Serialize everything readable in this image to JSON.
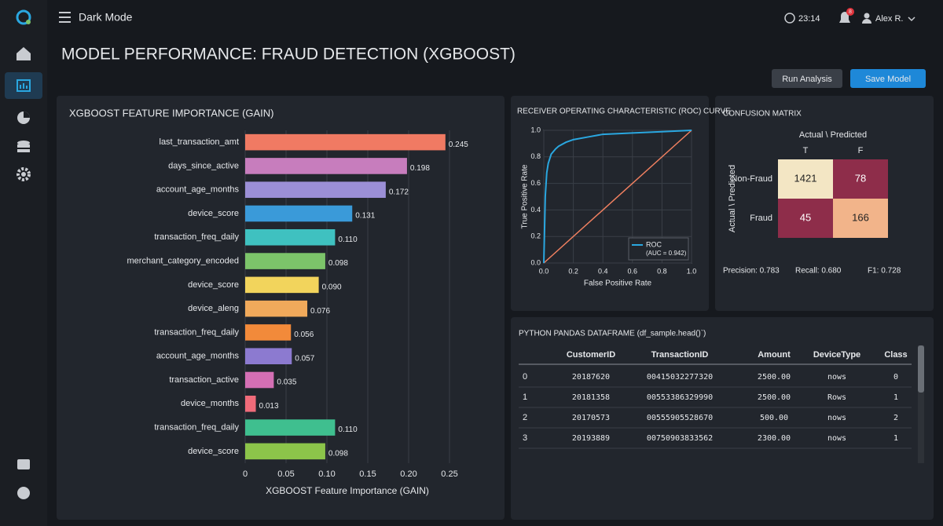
{
  "nav": {
    "menu_label": "Dark Mode"
  },
  "header": {
    "title": "MODEL PERFORMANCE: FRAUD DETECTION (XGBOOST)",
    "time": "23:14",
    "notifications": 8,
    "user": "Alex R.",
    "buttons": [
      "Run Analysis",
      "Save Model"
    ]
  },
  "chart_data": [
    {
      "type": "bar",
      "orientation": "horizontal",
      "title": "XGBOOST FEATURE IMPORTANCE (GAIN)",
      "x_label": "XGBOOST Feature Importance (GAIN)",
      "categories": [
        "last_transaction_amt",
        "days_since_active",
        "account_age_months",
        "device_score",
        "transaction_freq_daily",
        "merchant_category_encoded",
        "device_score",
        "device_aleng",
        "transaction_freq_daily",
        "account_age_months",
        "transaction_active",
        "device_months",
        "transaction_freq_daily",
        "device_score"
      ],
      "values": [
        0.245,
        0.198,
        0.172,
        0.131,
        0.11,
        0.098,
        0.09,
        0.076,
        0.056,
        0.057,
        0.035,
        0.013,
        0.11,
        0.098
      ],
      "value_labels": [
        "0.245",
        "0.198",
        "0.172",
        "0.131",
        "0.110",
        "0.098",
        "0.090",
        "0.076",
        "0.056",
        "0.057",
        "0.035",
        "0.013",
        "0.110",
        "0.098"
      ],
      "colors": [
        "#f07a63",
        "#c77dbd",
        "#9b8fd6",
        "#3a9ad9",
        "#3fc1c0",
        "#7cc46a",
        "#f2d45c",
        "#f0a95b",
        "#f28a3a",
        "#8c7ad0",
        "#d46fb4",
        "#f06b7a",
        "#3fbf8f",
        "#8cc44a"
      ],
      "xlim": [
        0,
        0.25
      ],
      "xticks": [
        0,
        0.05,
        {
          "value": 0.1,
          "label": "0.10"
        },
        0.15,
        {
          "value": 0.2,
          "label": "0.20"
        },
        0.25
      ],
      "grid": true
    },
    {
      "type": "line",
      "title": "RECEIVER OPERATING CHARACTERISTIC (ROC) CURVE",
      "x_label": "False Positive Rate",
      "y_label": "True Positive Rate",
      "series": [
        {
          "name": "ROC",
          "color": "#2aa7e0",
          "x": [
            0,
            0.01,
            0.02,
            0.03,
            0.05,
            0.08,
            0.1,
            0.15,
            0.2,
            0.3,
            0.4,
            0.6,
            0.8,
            1.0
          ],
          "values": [
            0,
            0.5,
            0.68,
            0.75,
            0.82,
            0.86,
            0.88,
            0.91,
            0.93,
            0.95,
            0.97,
            0.98,
            0.99,
            1.0
          ]
        },
        {
          "color": "#f08060",
          "x": [
            0,
            1
          ],
          "values": [
            0,
            1
          ]
        }
      ],
      "annotation": "(AUC = 0.942)",
      "legend": "lower right",
      "xlim": [
        0,
        1
      ],
      "ylim": [
        0,
        1
      ],
      "xticks": [
        {
          "value": 0,
          "label": "0.0"
        },
        0.2,
        0.4,
        0.6,
        0.8,
        {
          "value": 1,
          "label": "1.0"
        }
      ],
      "yticks": [
        {
          "value": 0,
          "label": "0.0"
        },
        0.2,
        0.4,
        0.6,
        0.8,
        {
          "value": 1,
          "label": "1.0"
        }
      ],
      "grid": true
    }
  ],
  "confusion_matrix": {
    "title": "CONFUSION MATRIX",
    "column_title": "Actual \\ Predicted",
    "row_title": "Actual \\ Predicted",
    "columns": [
      "T",
      "F"
    ],
    "rows": [
      "Non-Fraud",
      "Fraud"
    ],
    "values": [
      [
        1421,
        78
      ],
      [
        45,
        166
      ]
    ],
    "colors": [
      [
        "#f3e6c4",
        "#8e2d4a"
      ],
      [
        "#8e2d4a",
        "#f2b48a"
      ]
    ],
    "metrics": [
      "Precision: 0.783",
      "Recall: 0.680",
      "F1: 0.728"
    ]
  },
  "table": {
    "title": "PYTHON PANDAS DATAFRAME (df_sample.head()`)",
    "columns": [
      "CustomerID",
      "TransactionID",
      "Amount",
      "DeviceType",
      "Class"
    ],
    "rows": [
      {
        "index": "0",
        "cells": [
          "20187620",
          "00415032277320",
          "2500.00",
          "nows",
          "0"
        ]
      },
      {
        "index": "1",
        "cells": [
          "20181358",
          "00553386329990",
          "2500.00",
          "Rows",
          "1"
        ]
      },
      {
        "index": "2",
        "cells": [
          "20170573",
          "00555905528670",
          "500.00",
          "nows",
          "2"
        ]
      },
      {
        "index": "3",
        "cells": [
          "20193889",
          "00750903833562",
          "2300.00",
          "nows",
          "1"
        ]
      }
    ]
  }
}
